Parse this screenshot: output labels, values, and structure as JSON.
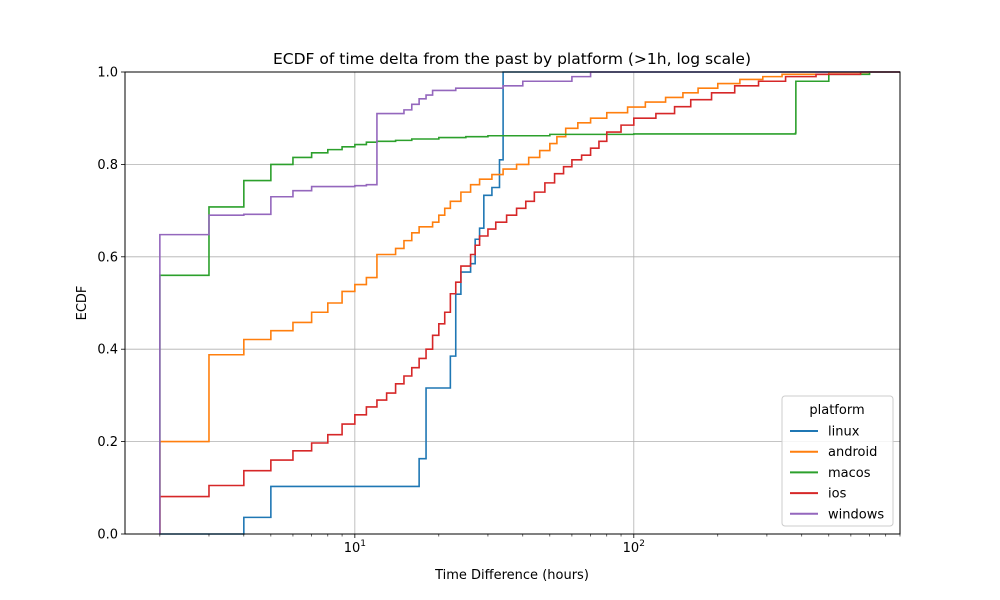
{
  "chart_data": {
    "type": "line",
    "title": "ECDF of time delta from the past by platform (>1h, log scale)",
    "xlabel": "Time Difference (hours)",
    "ylabel": "ECDF",
    "xscale": "log",
    "xlim": [
      1.5,
      900
    ],
    "ylim": [
      0,
      1
    ],
    "grid": true,
    "x_ticks": [
      {
        "value": 10,
        "base": "10",
        "exp": "1"
      },
      {
        "value": 100,
        "base": "10",
        "exp": "2"
      }
    ],
    "y_ticks": [
      0.0,
      0.2,
      0.4,
      0.6,
      0.8,
      1.0
    ],
    "y_tick_labels": [
      "0.0",
      "0.2",
      "0.4",
      "0.6",
      "0.8",
      "1.0"
    ],
    "legend": {
      "title": "platform",
      "position": "lower right"
    },
    "series": [
      {
        "name": "linux",
        "color": "#1f77b4",
        "points": [
          [
            2,
            0.0
          ],
          [
            4,
            0.036
          ],
          [
            5,
            0.103
          ],
          [
            17,
            0.163
          ],
          [
            18,
            0.316
          ],
          [
            22,
            0.385
          ],
          [
            23,
            0.519
          ],
          [
            24,
            0.567
          ],
          [
            26,
            0.585
          ],
          [
            27,
            0.638
          ],
          [
            28,
            0.662
          ],
          [
            29,
            0.733
          ],
          [
            31,
            0.75
          ],
          [
            33,
            0.81
          ],
          [
            34,
            1.0
          ]
        ]
      },
      {
        "name": "android",
        "color": "#ff7f0e",
        "points": [
          [
            2,
            0.2
          ],
          [
            3,
            0.388
          ],
          [
            4,
            0.421
          ],
          [
            5,
            0.44
          ],
          [
            6,
            0.458
          ],
          [
            7,
            0.48
          ],
          [
            8,
            0.5
          ],
          [
            9,
            0.525
          ],
          [
            10,
            0.54
          ],
          [
            11,
            0.555
          ],
          [
            12,
            0.605
          ],
          [
            14,
            0.618
          ],
          [
            15,
            0.635
          ],
          [
            16,
            0.652
          ],
          [
            17,
            0.665
          ],
          [
            19,
            0.675
          ],
          [
            20,
            0.69
          ],
          [
            21,
            0.705
          ],
          [
            22,
            0.72
          ],
          [
            24,
            0.74
          ],
          [
            26,
            0.756
          ],
          [
            28,
            0.768
          ],
          [
            31,
            0.778
          ],
          [
            34,
            0.79
          ],
          [
            38,
            0.8
          ],
          [
            42,
            0.815
          ],
          [
            46,
            0.83
          ],
          [
            50,
            0.845
          ],
          [
            53,
            0.86
          ],
          [
            57,
            0.878
          ],
          [
            63,
            0.89
          ],
          [
            70,
            0.9
          ],
          [
            80,
            0.912
          ],
          [
            95,
            0.924
          ],
          [
            110,
            0.935
          ],
          [
            130,
            0.945
          ],
          [
            150,
            0.955
          ],
          [
            170,
            0.965
          ],
          [
            200,
            0.975
          ],
          [
            240,
            0.984
          ],
          [
            290,
            0.99
          ],
          [
            340,
            0.995
          ],
          [
            500,
            0.999
          ],
          [
            700,
            1.0
          ]
        ]
      },
      {
        "name": "macos",
        "color": "#2ca02c",
        "points": [
          [
            2,
            0.56
          ],
          [
            3,
            0.708
          ],
          [
            4,
            0.765
          ],
          [
            5,
            0.8
          ],
          [
            6,
            0.815
          ],
          [
            7,
            0.825
          ],
          [
            8,
            0.832
          ],
          [
            9,
            0.838
          ],
          [
            10,
            0.843
          ],
          [
            11,
            0.848
          ],
          [
            12,
            0.85
          ],
          [
            14,
            0.852
          ],
          [
            16,
            0.855
          ],
          [
            20,
            0.858
          ],
          [
            25,
            0.86
          ],
          [
            30,
            0.862
          ],
          [
            50,
            0.865
          ],
          [
            100,
            0.866
          ],
          [
            380,
            0.868
          ],
          [
            381,
            0.98
          ],
          [
            500,
            0.995
          ],
          [
            700,
            1.0
          ]
        ]
      },
      {
        "name": "ios",
        "color": "#d62728",
        "points": [
          [
            2,
            0.081
          ],
          [
            3,
            0.105
          ],
          [
            4,
            0.137
          ],
          [
            5,
            0.16
          ],
          [
            6,
            0.18
          ],
          [
            7,
            0.197
          ],
          [
            8,
            0.215
          ],
          [
            9,
            0.238
          ],
          [
            10,
            0.258
          ],
          [
            11,
            0.275
          ],
          [
            12,
            0.29
          ],
          [
            13,
            0.305
          ],
          [
            14,
            0.325
          ],
          [
            15,
            0.342
          ],
          [
            16,
            0.36
          ],
          [
            17,
            0.38
          ],
          [
            18,
            0.4
          ],
          [
            19,
            0.43
          ],
          [
            20,
            0.455
          ],
          [
            21,
            0.48
          ],
          [
            22,
            0.52
          ],
          [
            23,
            0.545
          ],
          [
            24,
            0.58
          ],
          [
            26,
            0.605
          ],
          [
            27,
            0.625
          ],
          [
            28,
            0.645
          ],
          [
            30,
            0.66
          ],
          [
            32,
            0.675
          ],
          [
            35,
            0.69
          ],
          [
            38,
            0.705
          ],
          [
            41,
            0.72
          ],
          [
            44,
            0.74
          ],
          [
            48,
            0.76
          ],
          [
            52,
            0.78
          ],
          [
            56,
            0.795
          ],
          [
            60,
            0.81
          ],
          [
            65,
            0.82
          ],
          [
            70,
            0.835
          ],
          [
            75,
            0.85
          ],
          [
            80,
            0.87
          ],
          [
            90,
            0.885
          ],
          [
            100,
            0.9
          ],
          [
            120,
            0.91
          ],
          [
            140,
            0.925
          ],
          [
            160,
            0.94
          ],
          [
            190,
            0.955
          ],
          [
            230,
            0.97
          ],
          [
            280,
            0.98
          ],
          [
            350,
            0.99
          ],
          [
            450,
            0.995
          ],
          [
            650,
            1.0
          ]
        ]
      },
      {
        "name": "windows",
        "color": "#9467bd",
        "points": [
          [
            2,
            0.648
          ],
          [
            3,
            0.69
          ],
          [
            4,
            0.692
          ],
          [
            5,
            0.73
          ],
          [
            6,
            0.743
          ],
          [
            7,
            0.752
          ],
          [
            10,
            0.754
          ],
          [
            11,
            0.756
          ],
          [
            12,
            0.91
          ],
          [
            15,
            0.918
          ],
          [
            16,
            0.93
          ],
          [
            17,
            0.942
          ],
          [
            18,
            0.95
          ],
          [
            19,
            0.96
          ],
          [
            23,
            0.965
          ],
          [
            34,
            0.97
          ],
          [
            40,
            0.98
          ],
          [
            60,
            0.99
          ],
          [
            70,
            1.0
          ]
        ]
      }
    ]
  }
}
